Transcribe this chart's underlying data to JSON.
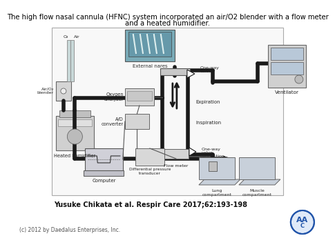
{
  "title_line1": "The high flow nasal cannula (HFNC) system incorporated an air/O2 blender with a flow meter",
  "title_line2": "and a heated humidifier.",
  "citation": "Yusuke Chikata et al. Respir Care 2017;62:193-198",
  "copyright": "(c) 2012 by Daedalus Enterprises, Inc.",
  "bg_color": "#ffffff",
  "gray_light": "#d8d8d8",
  "gray_medium": "#b0b0b0",
  "gray_dark": "#888888",
  "black": "#111111",
  "tube_color": "#1a1a1a",
  "box_fill": "#d0d0d0",
  "blue_gray": "#b8c8d8"
}
